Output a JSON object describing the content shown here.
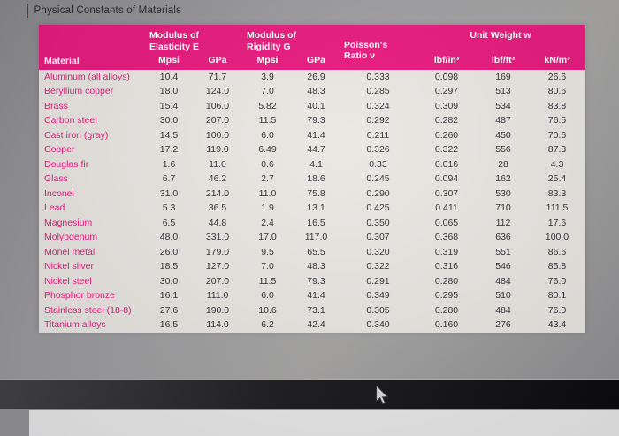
{
  "page_title": "Physical Constants of Materials",
  "colors": {
    "accent": "#e8187d",
    "table_bg": "#eae7e3",
    "photo_bg": "#98979b"
  },
  "table": {
    "material_header": "Material",
    "groups": [
      {
        "label": "Modulus of\nElasticity E",
        "sub": [
          "Mpsi",
          "GPa"
        ]
      },
      {
        "label": "Modulus of\nRigidity G",
        "sub": [
          "Mpsi",
          "GPa"
        ]
      },
      {
        "label": "Poisson's\nRatio ν",
        "sub": []
      },
      {
        "label": "Unit Weight w",
        "sub": [
          "lbf/in³",
          "lbf/ft³",
          "kN/m³"
        ]
      }
    ],
    "rows": [
      {
        "material": "Aluminum (all alloys)",
        "values": [
          "10.4",
          "71.7",
          "3.9",
          "26.9",
          "0.333",
          "0.098",
          "169",
          "26.6"
        ]
      },
      {
        "material": "Beryllium copper",
        "values": [
          "18.0",
          "124.0",
          "7.0",
          "48.3",
          "0.285",
          "0.297",
          "513",
          "80.6"
        ]
      },
      {
        "material": "Brass",
        "values": [
          "15.4",
          "106.0",
          "5.82",
          "40.1",
          "0.324",
          "0.309",
          "534",
          "83.8"
        ]
      },
      {
        "material": "Carbon steel",
        "values": [
          "30.0",
          "207.0",
          "11.5",
          "79.3",
          "0.292",
          "0.282",
          "487",
          "76.5"
        ]
      },
      {
        "material": "Cast iron (gray)",
        "values": [
          "14.5",
          "100.0",
          "6.0",
          "41.4",
          "0.211",
          "0.260",
          "450",
          "70.6"
        ]
      },
      {
        "material": "Copper",
        "values": [
          "17.2",
          "119.0",
          "6.49",
          "44.7",
          "0.326",
          "0.322",
          "556",
          "87.3"
        ]
      },
      {
        "material": "Douglas fir",
        "values": [
          "1.6",
          "11.0",
          "0.6",
          "4.1",
          "0.33",
          "0.016",
          "28",
          "4.3"
        ]
      },
      {
        "material": "Glass",
        "values": [
          "6.7",
          "46.2",
          "2.7",
          "18.6",
          "0.245",
          "0.094",
          "162",
          "25.4"
        ]
      },
      {
        "material": "Inconel",
        "values": [
          "31.0",
          "214.0",
          "11.0",
          "75.8",
          "0.290",
          "0.307",
          "530",
          "83.3"
        ]
      },
      {
        "material": "Lead",
        "values": [
          "5.3",
          "36.5",
          "1.9",
          "13.1",
          "0.425",
          "0.411",
          "710",
          "111.5"
        ]
      },
      {
        "material": "Magnesium",
        "values": [
          "6.5",
          "44.8",
          "2.4",
          "16.5",
          "0.350",
          "0.065",
          "112",
          "17.6"
        ]
      },
      {
        "material": "Molybdenum",
        "values": [
          "48.0",
          "331.0",
          "17.0",
          "117.0",
          "0.307",
          "0.368",
          "636",
          "100.0"
        ]
      },
      {
        "material": "Monel metal",
        "values": [
          "26.0",
          "179.0",
          "9.5",
          "65.5",
          "0.320",
          "0.319",
          "551",
          "86.6"
        ]
      },
      {
        "material": "Nickel silver",
        "values": [
          "18.5",
          "127.0",
          "7.0",
          "48.3",
          "0.322",
          "0.316",
          "546",
          "85.8"
        ]
      },
      {
        "material": "Nickel steel",
        "values": [
          "30.0",
          "207.0",
          "11.5",
          "79.3",
          "0.291",
          "0.280",
          "484",
          "76.0"
        ]
      },
      {
        "material": "Phosphor bronze",
        "values": [
          "16.1",
          "111.0",
          "6.0",
          "41.4",
          "0.349",
          "0.295",
          "510",
          "80.1"
        ]
      },
      {
        "material": "Stainless steel (18-8)",
        "values": [
          "27.6",
          "190.0",
          "10.6",
          "73.1",
          "0.305",
          "0.280",
          "484",
          "76.0"
        ]
      },
      {
        "material": "Titanium alloys",
        "values": [
          "16.5",
          "114.0",
          "6.2",
          "42.4",
          "0.340",
          "0.160",
          "276",
          "43.4"
        ]
      }
    ]
  }
}
